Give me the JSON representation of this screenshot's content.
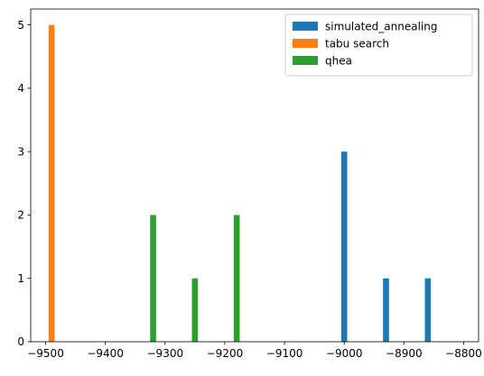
{
  "chart_data": {
    "type": "bar",
    "title": "",
    "xlabel": "",
    "ylabel": "",
    "xlim": [
      -9525,
      -8775
    ],
    "ylim": [
      0,
      5.25
    ],
    "grid": false,
    "legend_position": "top-right",
    "bar_width": 10,
    "x_ticks": [
      -9500,
      -9400,
      -9300,
      -9200,
      -9100,
      -9000,
      -8900,
      -8800
    ],
    "x_tick_labels": [
      "−9500",
      "−9400",
      "−9300",
      "−9200",
      "−9100",
      "−9000",
      "−8900",
      "−8800"
    ],
    "y_ticks": [
      0,
      1,
      2,
      3,
      4,
      5
    ],
    "y_tick_labels": [
      "0",
      "1",
      "2",
      "3",
      "4",
      "5"
    ],
    "series": [
      {
        "name": "simulated_annealing",
        "color": "#1f77b4",
        "x": [
          -9000,
          -8930,
          -8860
        ],
        "values": [
          3,
          1,
          1
        ]
      },
      {
        "name": "tabu search",
        "color": "#ff7f0e",
        "x": [
          -9490
        ],
        "values": [
          5
        ]
      },
      {
        "name": "qhea",
        "color": "#2ca02c",
        "x": [
          -9320,
          -9250,
          -9180
        ],
        "values": [
          2,
          1,
          2
        ]
      }
    ]
  }
}
